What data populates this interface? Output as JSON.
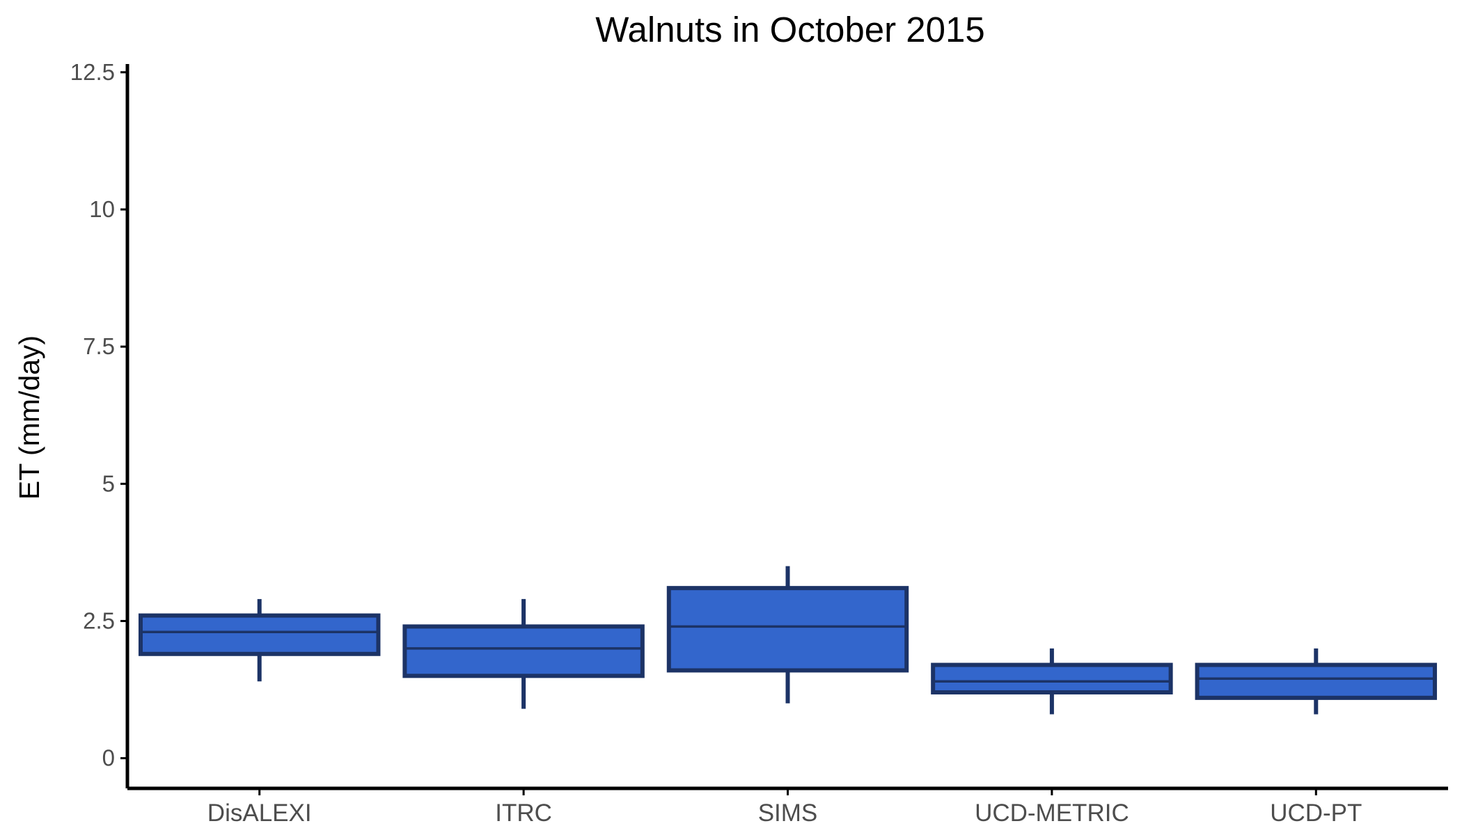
{
  "chart_data": {
    "type": "box",
    "title": "Walnuts in October 2015",
    "xlabel": "",
    "ylabel": "ET (mm/day)",
    "ylim": [
      -0.55,
      12.65
    ],
    "yticks": [
      0,
      2.5,
      5,
      7.5,
      10,
      12.5
    ],
    "ytick_labels": [
      "0",
      "2.5",
      "5",
      "7.5",
      "10",
      "12.5"
    ],
    "categories": [
      "DisALEXI",
      "ITRC",
      "SIMS",
      "UCD-METRIC",
      "UCD-PT"
    ],
    "boxes": [
      {
        "category": "DisALEXI",
        "min": 1.4,
        "q1": 1.9,
        "median": 2.3,
        "q3": 2.6,
        "max": 2.9
      },
      {
        "category": "ITRC",
        "min": 0.9,
        "q1": 1.5,
        "median": 2.0,
        "q3": 2.4,
        "max": 2.9
      },
      {
        "category": "SIMS",
        "min": 1.0,
        "q1": 1.6,
        "median": 2.4,
        "q3": 3.1,
        "max": 3.5
      },
      {
        "category": "UCD-METRIC",
        "min": 0.8,
        "q1": 1.2,
        "median": 1.4,
        "q3": 1.7,
        "max": 2.0
      },
      {
        "category": "UCD-PT",
        "min": 0.8,
        "q1": 1.1,
        "median": 1.45,
        "q3": 1.7,
        "max": 2.0
      }
    ],
    "grid": false,
    "legend": "none",
    "colors": {
      "box_fill": "#3366cc",
      "box_stroke": "#1c3366",
      "axis": "#000000"
    }
  }
}
